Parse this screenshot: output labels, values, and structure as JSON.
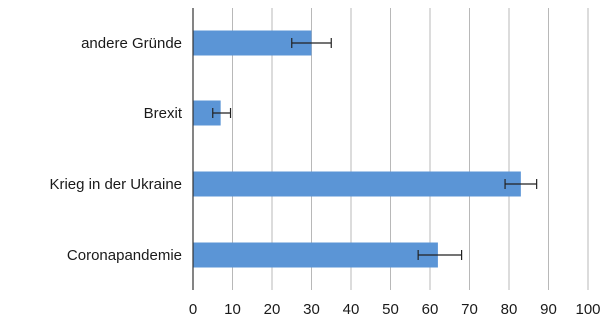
{
  "chart_data": {
    "type": "bar",
    "orientation": "horizontal",
    "categories": [
      "andere Gründe",
      "Brexit",
      "Krieg in der Ukraine",
      "Coronapandemie"
    ],
    "values": [
      30,
      7,
      83,
      62
    ],
    "error": [
      [
        25,
        35
      ],
      [
        5,
        9.5
      ],
      [
        79,
        87
      ],
      [
        57,
        68
      ]
    ],
    "xlim": [
      0,
      100
    ],
    "xticks": [
      0,
      10,
      20,
      30,
      40,
      50,
      60,
      70,
      80,
      90,
      100
    ],
    "title": "",
    "xlabel": "",
    "ylabel": "",
    "grid": true,
    "bar_color": "#5b95d6"
  }
}
